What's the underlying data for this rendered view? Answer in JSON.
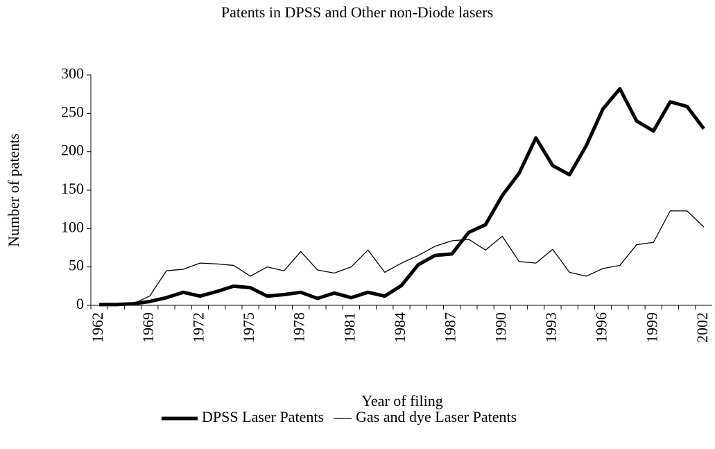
{
  "chart_data": {
    "type": "line",
    "title": "Patents in DPSS and Other non-Diode lasers",
    "x_label": "Year of filing",
    "y_label": "Number of patents",
    "categories": [
      "1962",
      null,
      null,
      "1969",
      null,
      null,
      "1972",
      null,
      null,
      "1975",
      null,
      null,
      "1978",
      null,
      null,
      "1981",
      null,
      null,
      "1984",
      null,
      null,
      "1987",
      null,
      null,
      "1990",
      null,
      null,
      "1993",
      null,
      null,
      "1996",
      null,
      null,
      "1999",
      null,
      null,
      "2002"
    ],
    "series": [
      {
        "name": "DPSS Laser Patents",
        "color": "#000000",
        "values": [
          1,
          1,
          2,
          5,
          10,
          17,
          12,
          18,
          25,
          23,
          12,
          14,
          17,
          9,
          16,
          10,
          17,
          12,
          26,
          53,
          65,
          67,
          95,
          105,
          143,
          172,
          218,
          182,
          170,
          208,
          256,
          282,
          240,
          227,
          265,
          259,
          230
        ]
      },
      {
        "name": "Gas and dye Laser Patents",
        "color": "#000000",
        "values": [
          1,
          1,
          2,
          12,
          45,
          47,
          55,
          54,
          52,
          38,
          50,
          45,
          70,
          46,
          42,
          50,
          72,
          43,
          55,
          65,
          77,
          84,
          86,
          72,
          90,
          57,
          55,
          73,
          43,
          38,
          48,
          52,
          79,
          82,
          123,
          123,
          102
        ]
      }
    ],
    "ylim": [
      0,
      300
    ],
    "yticks": [
      0,
      50,
      100,
      150,
      200,
      250,
      300
    ],
    "legend": "bottom"
  }
}
